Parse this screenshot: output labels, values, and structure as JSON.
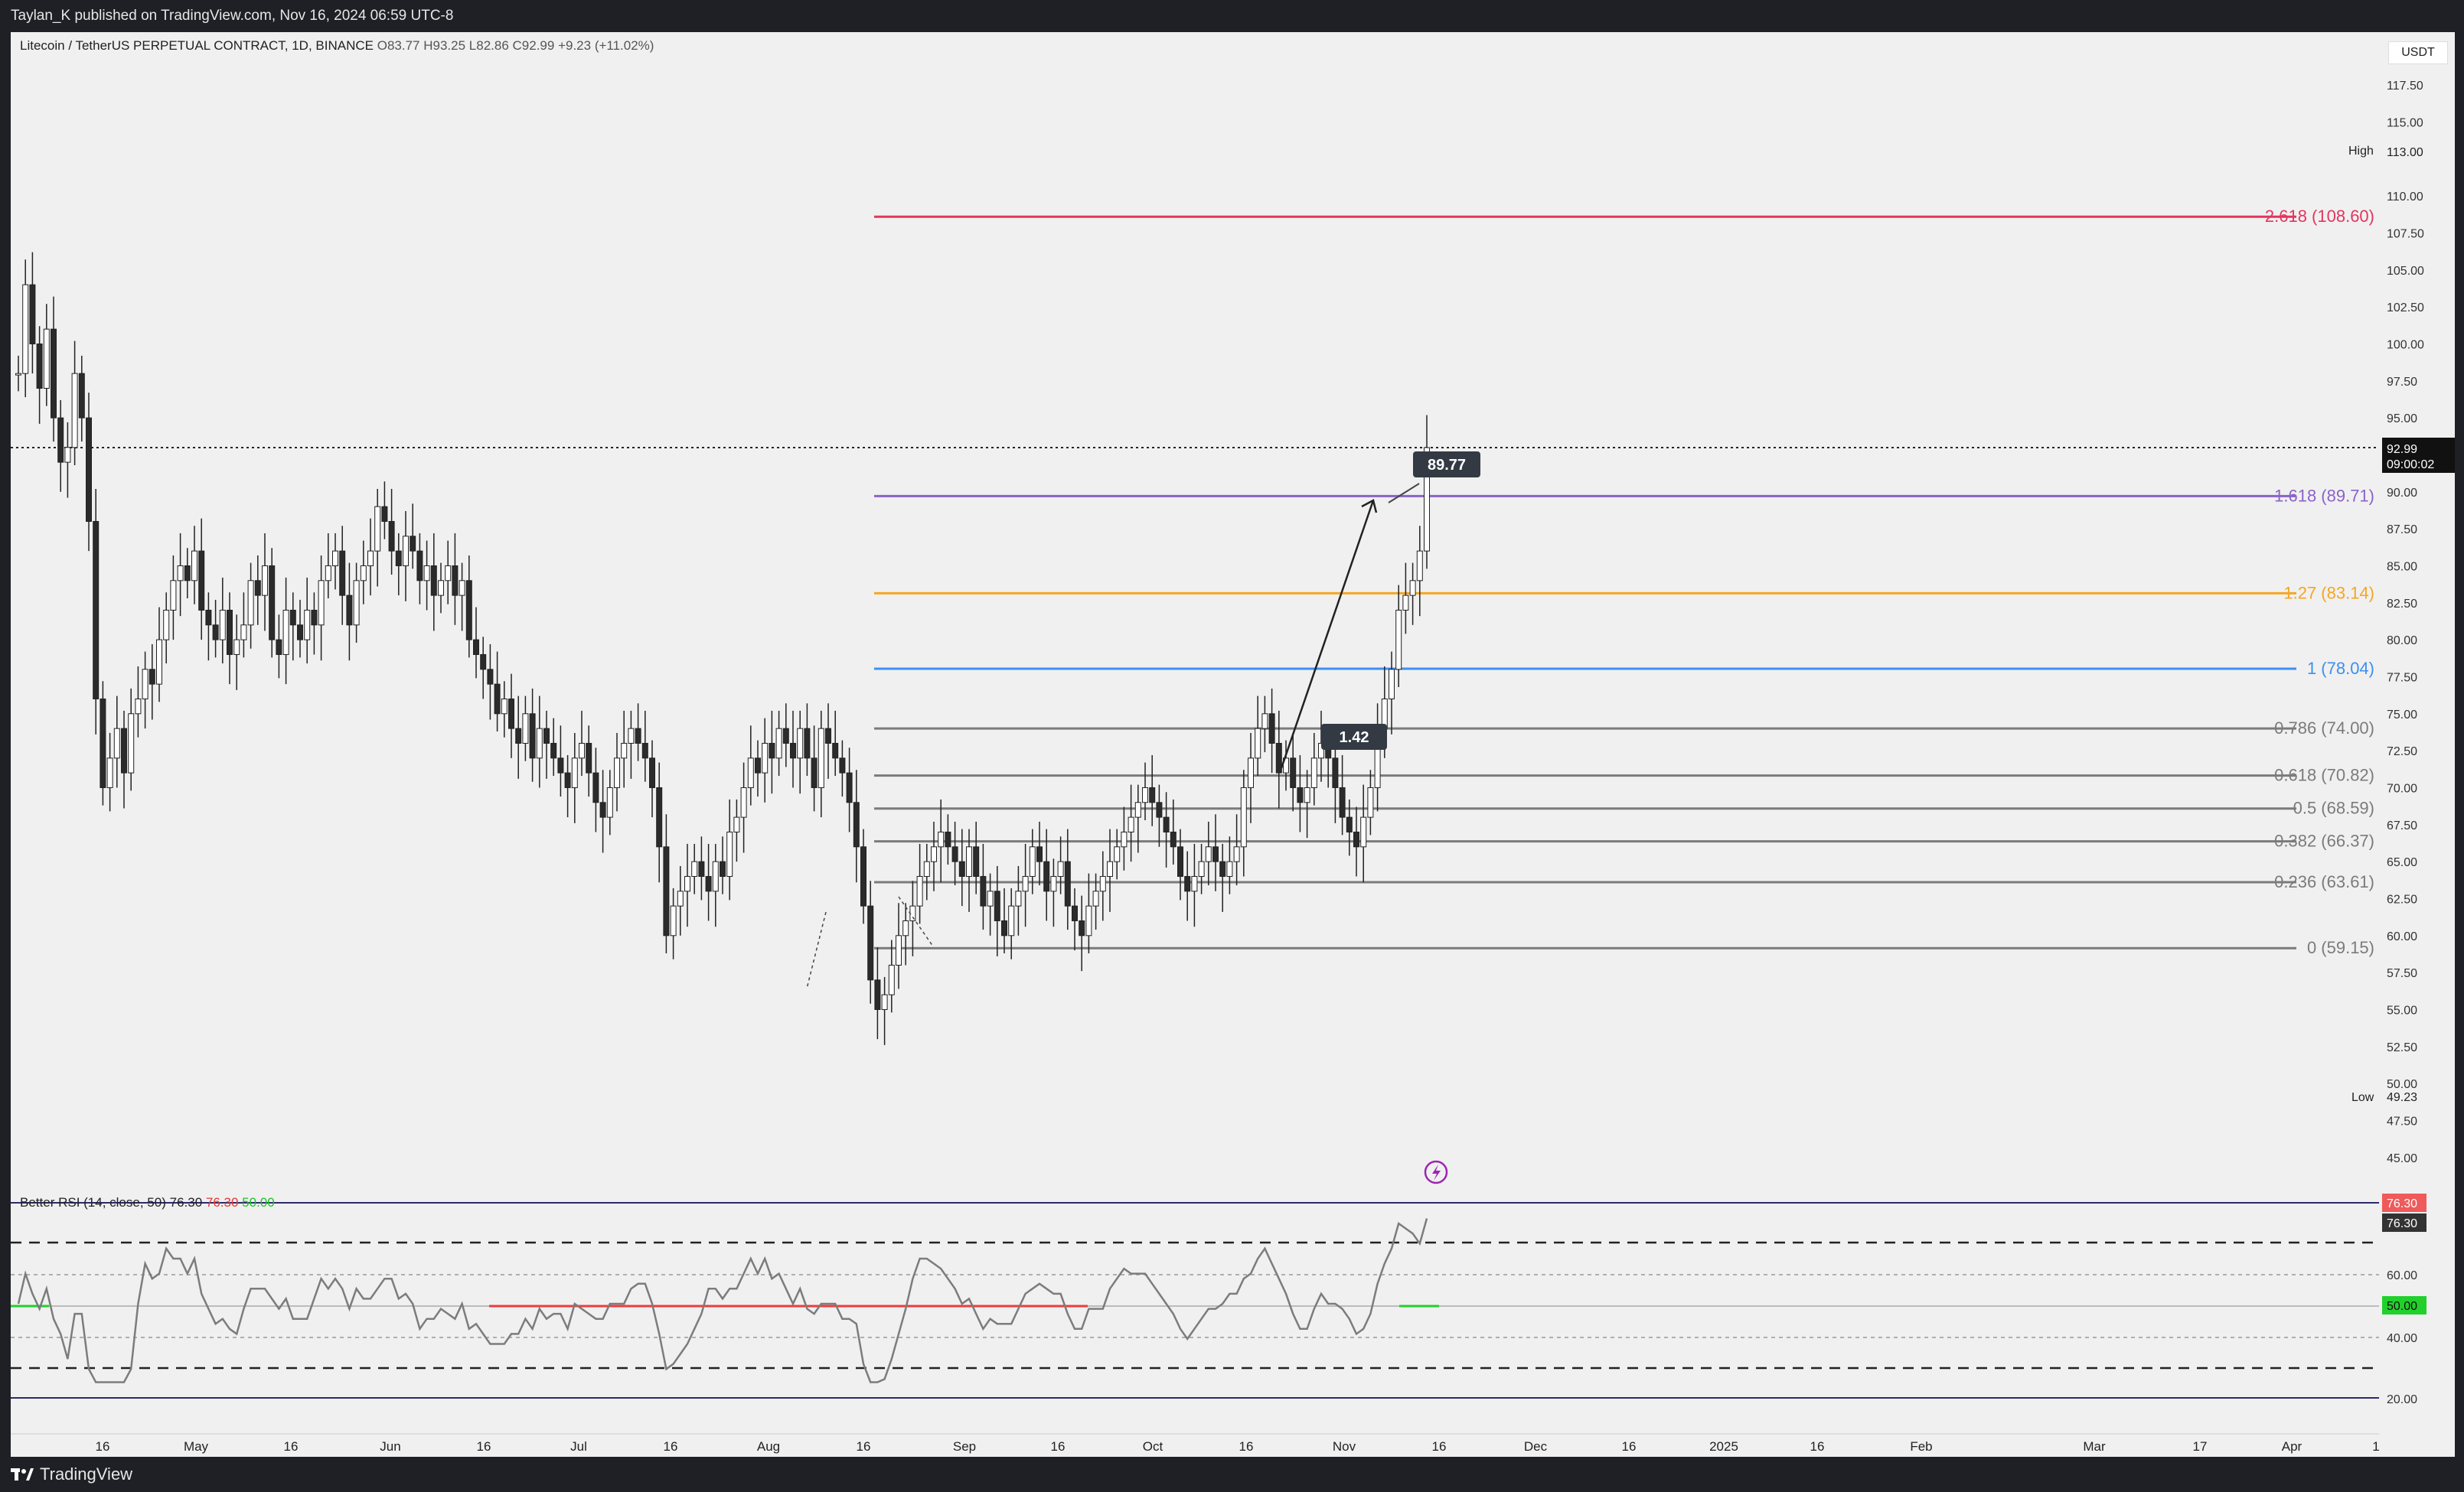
{
  "header": {
    "published": "Taylan_K published on TradingView.com, Nov 16, 2024 06:59 UTC-8"
  },
  "legend": {
    "symbol": "Litecoin / TetherUS PERPETUAL CONTRACT, 1D, BINANCE",
    "open": "O83.77",
    "high": "H93.25",
    "low": "L82.86",
    "close": "C92.99",
    "change": "+9.23 (+11.02%)"
  },
  "currency": "USDT",
  "price_axis": {
    "ticks": [
      "117.50",
      "115.00",
      "110.00",
      "107.50",
      "105.00",
      "102.50",
      "100.00",
      "97.50",
      "95.00",
      "90.00",
      "87.50",
      "85.00",
      "82.50",
      "80.00",
      "77.50",
      "75.00",
      "72.50",
      "70.00",
      "67.50",
      "65.00",
      "62.50",
      "60.00",
      "57.50",
      "55.00",
      "52.50",
      "50.00",
      "47.50",
      "45.00"
    ],
    "high_label": "High",
    "high_value": "113.00",
    "low_label": "Low",
    "low_value": "49.23",
    "last_price": "92.99",
    "countdown": "09:00:02"
  },
  "fib_levels": [
    {
      "label": "2.618 (108.60)",
      "color": "#e2365f"
    },
    {
      "label": "1.618 (89.71)",
      "color": "#8a63c9"
    },
    {
      "label": "1.27 (83.14)",
      "color": "#f5a623"
    },
    {
      "label": "1 (78.04)",
      "color": "#3d8ff0"
    },
    {
      "label": "0.786 (74.00)",
      "color": "#7b7b7b"
    },
    {
      "label": "0.618 (70.82)",
      "color": "#7b7b7b"
    },
    {
      "label": "0.5 (68.59)",
      "color": "#7b7b7b"
    },
    {
      "label": "0.382 (66.37)",
      "color": "#7b7b7b"
    },
    {
      "label": "0.236 (63.61)",
      "color": "#7b7b7b"
    },
    {
      "label": "0 (59.15)",
      "color": "#7b7b7b"
    }
  ],
  "annotations": {
    "target_box": "89.77",
    "mid_box": "1.42"
  },
  "rsi": {
    "title": "Better RSI (14, close, 50)",
    "value1": "76.30",
    "value2": "76.30",
    "value3": "50.00",
    "axis_ticks": [
      "60.00",
      "40.00",
      "20.00"
    ],
    "badge_top": "76.30",
    "badge_mid": "76.30",
    "badge_50": "50.00"
  },
  "time_axis": [
    "16",
    "May",
    "16",
    "Jun",
    "16",
    "Jul",
    "16",
    "Aug",
    "16",
    "Sep",
    "16",
    "Oct",
    "16",
    "Nov",
    "16",
    "Dec",
    "16",
    "2025",
    "16",
    "Feb",
    "Mar",
    "17",
    "Apr",
    "1"
  ],
  "footer": {
    "brand": "TradingView"
  },
  "colors": {
    "bull": "#ffffff",
    "bear": "#2b2b2b",
    "background": "#f0f0f0",
    "frame": "#1e2025"
  }
}
